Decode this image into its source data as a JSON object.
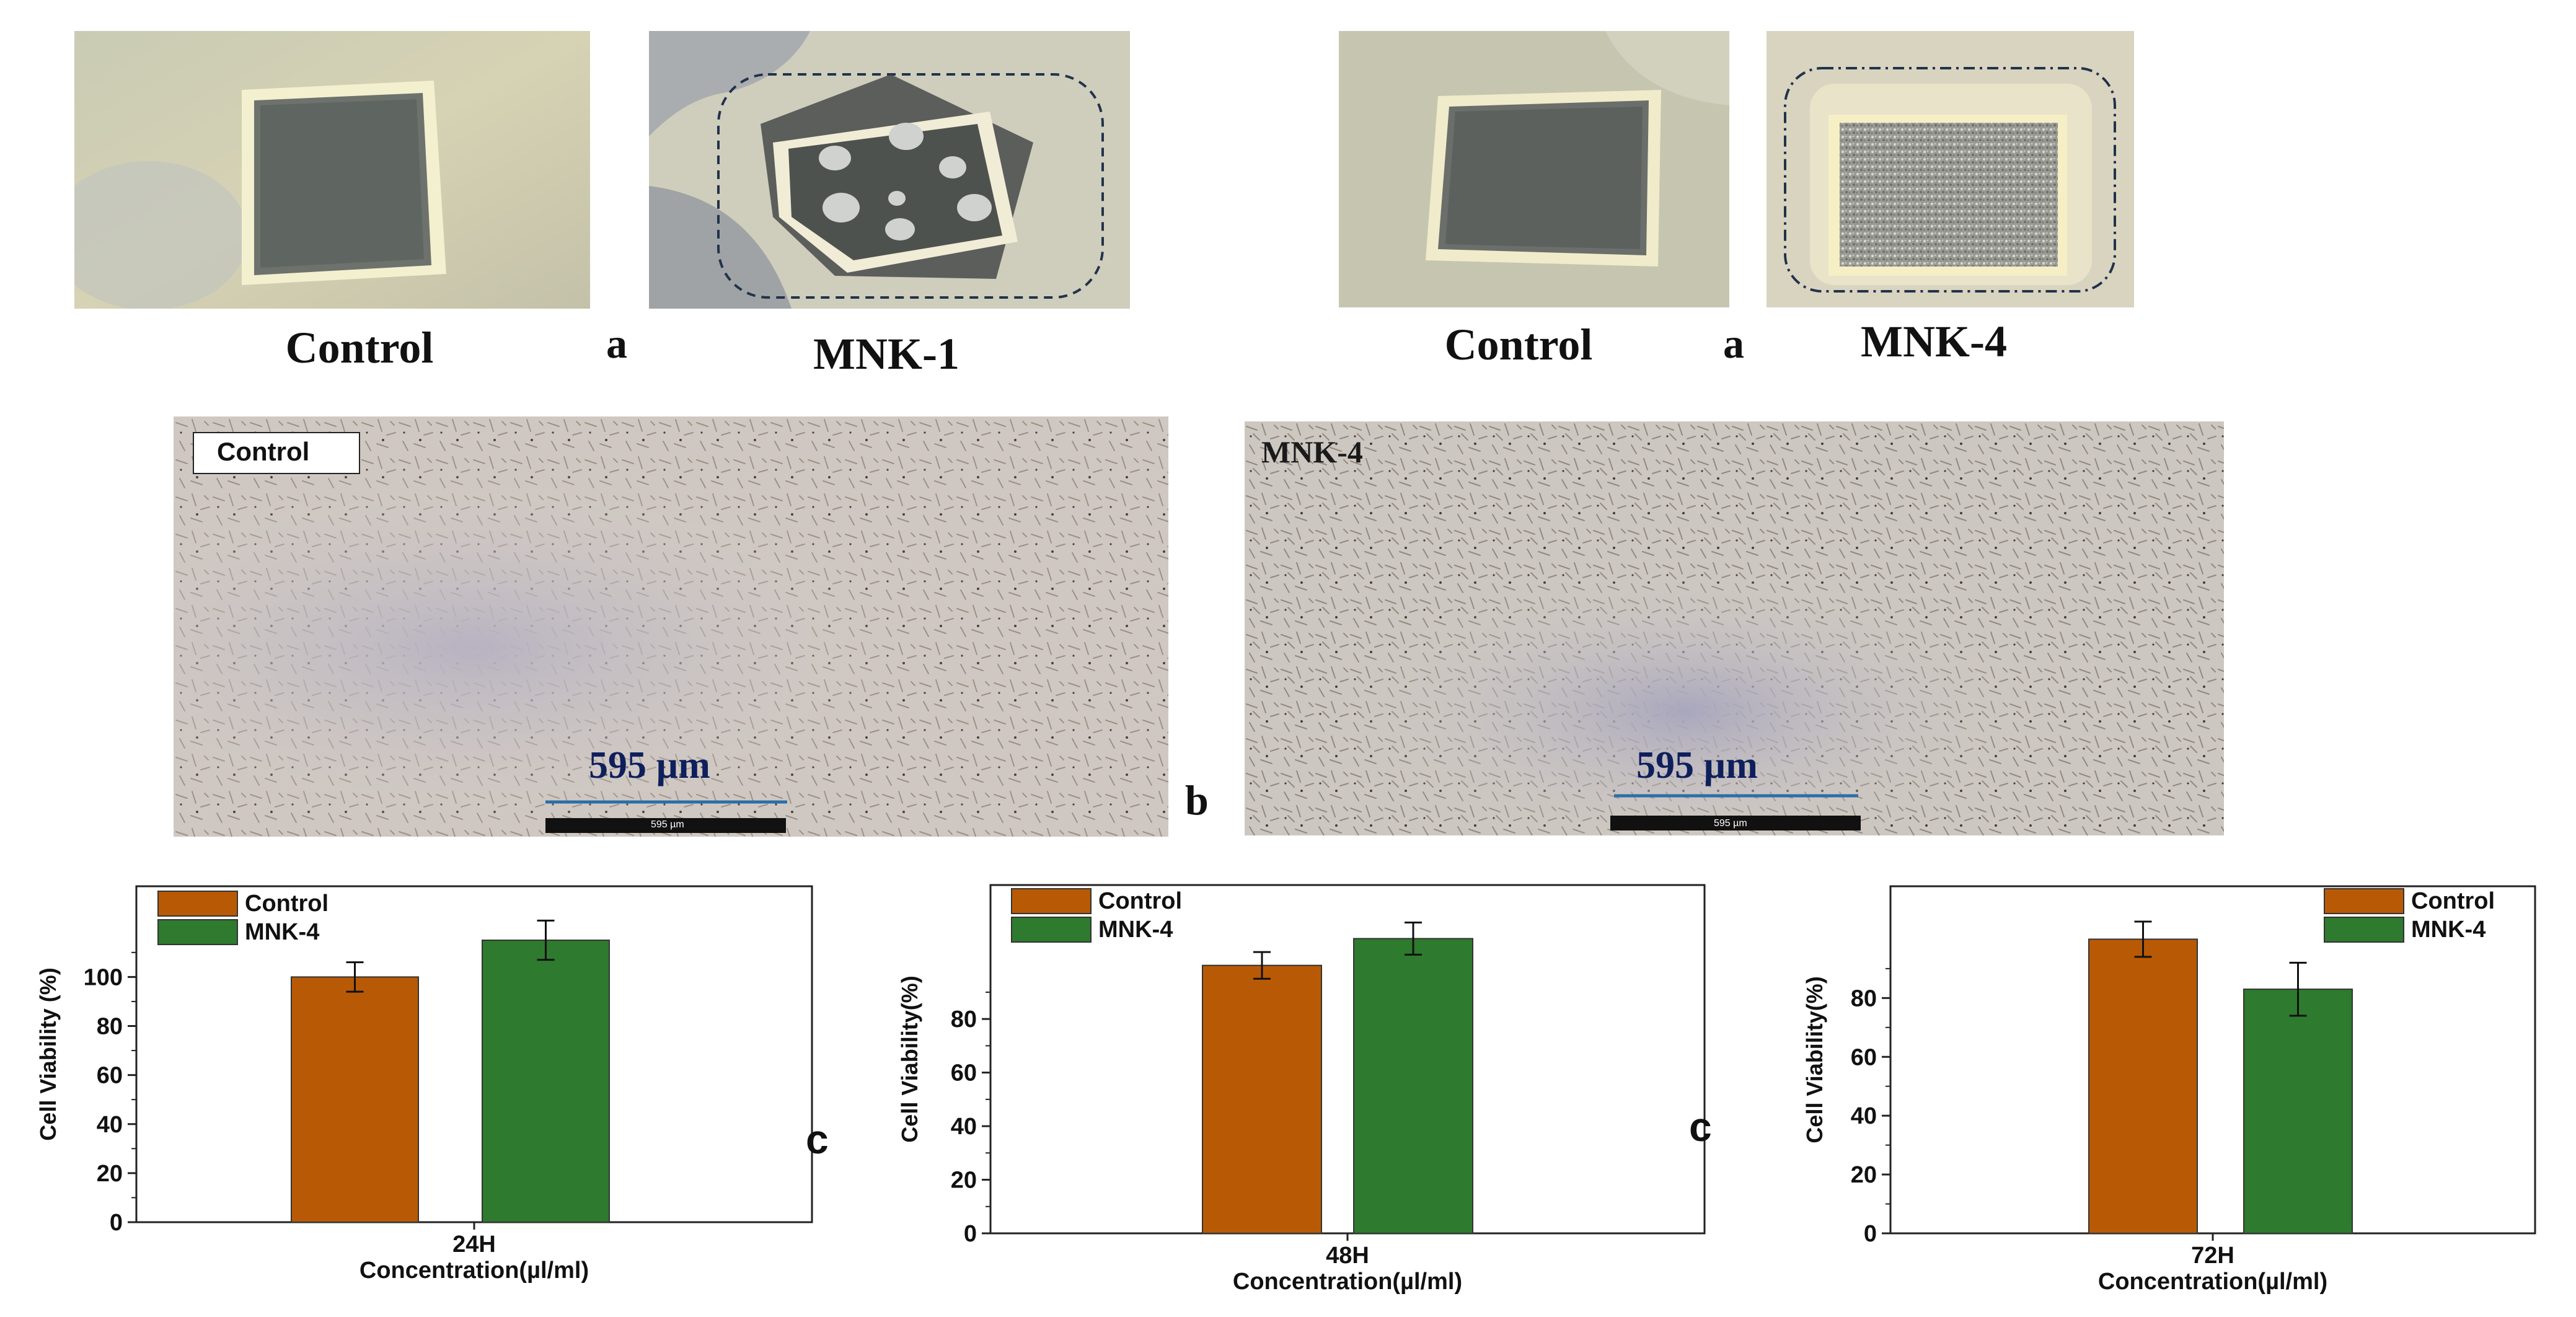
{
  "panel_a": {
    "left": {
      "control_label": "Control",
      "letter": "a",
      "sample_label": "MNK-1"
    },
    "right": {
      "control_label": "Control",
      "letter": "a",
      "sample_label": "MNK-4"
    }
  },
  "panel_b": {
    "letter": "b",
    "left": {
      "label": "Control",
      "scale_label": "595 µm",
      "scale_small": "595 µm"
    },
    "right": {
      "label": "MNK-4",
      "scale_label": "595 µm",
      "scale_small": "595 µm"
    }
  },
  "panel_c": {
    "letter": "c"
  },
  "colors": {
    "control": "#b85a05",
    "mnk4": "#2e7a2e",
    "axis": "#222222"
  },
  "chart_data": [
    {
      "type": "bar",
      "categories": [
        "24H"
      ],
      "series": [
        {
          "name": "Control",
          "values": [
            100
          ],
          "error": [
            6
          ]
        },
        {
          "name": "MNK-4",
          "values": [
            115
          ],
          "error": [
            8
          ]
        }
      ],
      "xlabel": "Concentration(µl/ml)",
      "ylabel": "Cell Viability (%)",
      "ylim": [
        0,
        137
      ],
      "yticks": [
        0,
        20,
        40,
        60,
        80,
        100
      ],
      "legend": "top-left"
    },
    {
      "type": "bar",
      "categories": [
        "48H"
      ],
      "series": [
        {
          "name": "Control",
          "values": [
            100
          ],
          "error": [
            5
          ]
        },
        {
          "name": "MNK-4",
          "values": [
            110
          ],
          "error": [
            6
          ]
        }
      ],
      "xlabel": "Concentration(µl/ml)",
      "ylabel": "Cell Viability(%)",
      "ylim": [
        0,
        130
      ],
      "yticks": [
        0,
        20,
        40,
        60,
        80
      ],
      "legend": "top-left"
    },
    {
      "type": "bar",
      "categories": [
        "72H"
      ],
      "series": [
        {
          "name": "Control",
          "values": [
            100
          ],
          "error": [
            6
          ]
        },
        {
          "name": "MNK-4",
          "values": [
            83
          ],
          "error": [
            9
          ]
        }
      ],
      "xlabel": "Concentration(µl/ml)",
      "ylabel": "Cell Viability(%)",
      "ylim": [
        0,
        118
      ],
      "yticks": [
        0,
        20,
        40,
        60,
        80
      ],
      "legend": "top-right"
    }
  ]
}
